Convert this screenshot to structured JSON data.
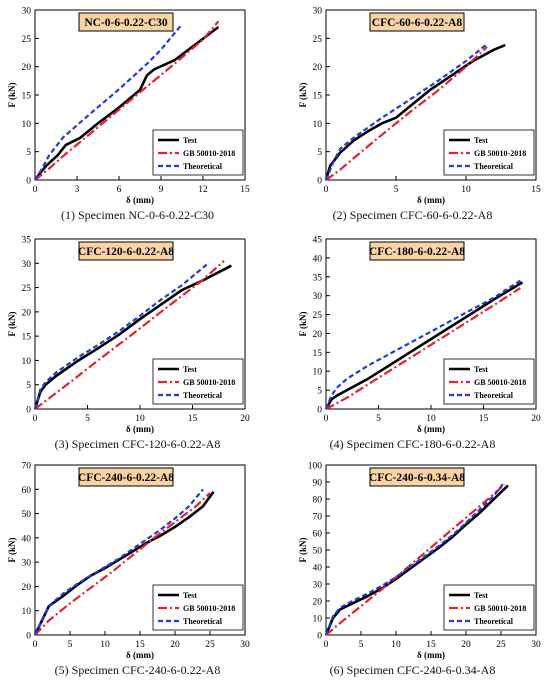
{
  "chart_data": [
    {
      "type": "line",
      "title": "NC-0-6-0.22-C30",
      "caption": "(1) Specimen NC-0-6-0.22-C30",
      "xlabel": "δ (mm)",
      "ylabel": "F (kN)",
      "xlim": [
        0,
        15
      ],
      "ylim": [
        0,
        30
      ],
      "xticks": [
        0,
        3,
        6,
        9,
        12,
        15
      ],
      "yticks": [
        0,
        5,
        10,
        15,
        20,
        25,
        30
      ],
      "legend": "bottom-right",
      "grid": false,
      "series": [
        {
          "name": "Test",
          "color": "#000000",
          "x": [
            0,
            0.3,
            0.8,
            1.6,
            2.2,
            3.2,
            4.5,
            6.0,
            7.5,
            8.0,
            8.5,
            10.0,
            11.5,
            13.1
          ],
          "y": [
            0,
            1.0,
            2.5,
            4.3,
            6.2,
            7.4,
            10.0,
            12.8,
            15.9,
            18.5,
            19.5,
            21.2,
            24.0,
            27.0
          ]
        },
        {
          "name": "GB 50010-2018",
          "color": "#e8202a",
          "x": [
            0,
            1.0,
            2.0,
            4.0,
            6.0,
            8.0,
            10.0,
            12.0,
            13.1
          ],
          "y": [
            0,
            2.0,
            4.2,
            8.3,
            12.4,
            16.5,
            20.6,
            24.8,
            28.0
          ]
        },
        {
          "name": "Theoretical",
          "color": "#1f3be0",
          "x": [
            0,
            0.5,
            1.0,
            2.0,
            4.0,
            6.0,
            8.0,
            9.0,
            10.5
          ],
          "y": [
            0,
            2.0,
            4.3,
            7.5,
            11.8,
            16.0,
            20.5,
            23.0,
            27.5
          ]
        }
      ]
    },
    {
      "type": "line",
      "title": "CFC-60-6-0.22-A8",
      "caption": "(2) Specimen CFC-60-6-0.22-A8",
      "xlabel": "δ (mm)",
      "ylabel": "F (kN)",
      "xlim": [
        0,
        15
      ],
      "ylim": [
        0,
        30
      ],
      "xticks": [
        0,
        5,
        10,
        15
      ],
      "yticks": [
        0,
        5,
        10,
        15,
        20,
        25,
        30
      ],
      "legend": "bottom-right",
      "grid": false,
      "series": [
        {
          "name": "Test",
          "color": "#000000",
          "x": [
            0,
            0.3,
            1.0,
            2.0,
            3.0,
            4.0,
            5.0,
            6.0,
            7.5,
            9.0,
            10.5,
            12.0,
            12.8
          ],
          "y": [
            0,
            2.5,
            4.8,
            7.0,
            8.6,
            10.0,
            11.0,
            13.0,
            16.0,
            18.5,
            21.0,
            23.0,
            23.8
          ]
        },
        {
          "name": "GB 50010-2018",
          "color": "#e8202a",
          "x": [
            0,
            1.0,
            2.0,
            4.0,
            6.0,
            8.0,
            10.0,
            11.5
          ],
          "y": [
            0,
            1.8,
            3.9,
            8.0,
            12.0,
            15.8,
            20.0,
            23.5
          ]
        },
        {
          "name": "Theoretical",
          "color": "#1f3be0",
          "x": [
            0,
            0.5,
            1.0,
            2.0,
            4.0,
            6.0,
            8.0,
            10.0,
            11.5
          ],
          "y": [
            0,
            3.0,
            5.5,
            7.5,
            11.0,
            14.2,
            17.5,
            21.0,
            24.0
          ]
        }
      ]
    },
    {
      "type": "line",
      "title": "CFC-120-6-0.22-A8",
      "caption": "(3) Specimen CFC-120-6-0.22-A8",
      "xlabel": "δ (mm)",
      "ylabel": "F (kN)",
      "xlim": [
        0,
        20
      ],
      "ylim": [
        0,
        35
      ],
      "xticks": [
        0,
        5,
        10,
        15,
        20
      ],
      "yticks": [
        0,
        5,
        10,
        15,
        20,
        25,
        30,
        35
      ],
      "legend": "bottom-right",
      "grid": false,
      "series": [
        {
          "name": "Test",
          "color": "#000000",
          "x": [
            0,
            0.5,
            1.0,
            2.0,
            4.0,
            6.0,
            8.0,
            10.0,
            12.0,
            14.0,
            16.0,
            18.7
          ],
          "y": [
            0,
            3.5,
            5.0,
            6.8,
            9.8,
            12.5,
            15.3,
            18.5,
            21.5,
            24.5,
            26.5,
            29.5
          ]
        },
        {
          "name": "GB 50010-2018",
          "color": "#e8202a",
          "x": [
            0,
            2.0,
            4.0,
            6.0,
            8.0,
            10.0,
            12.0,
            14.0,
            16.0,
            18.0
          ],
          "y": [
            0,
            3.3,
            6.6,
            10.0,
            13.3,
            16.6,
            20.0,
            23.3,
            26.6,
            30.5
          ]
        },
        {
          "name": "Theoretical",
          "color": "#1f3be0",
          "x": [
            0,
            0.5,
            1.0,
            2.0,
            4.0,
            6.0,
            8.0,
            10.0,
            12.0,
            14.0,
            16.5
          ],
          "y": [
            0,
            4.0,
            5.5,
            7.5,
            10.5,
            13.2,
            16.0,
            19.2,
            22.5,
            25.5,
            30.0
          ]
        }
      ]
    },
    {
      "type": "line",
      "title": "CFC-180-6-0.22-A8",
      "caption": "(4) Specimen CFC-180-6-0.22-A8",
      "xlabel": "δ (mm)",
      "ylabel": "F (kN)",
      "xlim": [
        0,
        20
      ],
      "ylim": [
        0,
        45
      ],
      "xticks": [
        0,
        5,
        10,
        15,
        20
      ],
      "yticks": [
        0,
        5,
        10,
        15,
        20,
        25,
        30,
        35,
        40,
        45
      ],
      "legend": "bottom-right",
      "grid": false,
      "series": [
        {
          "name": "Test",
          "color": "#000000",
          "x": [
            0,
            0.5,
            1.0,
            2.0,
            4.0,
            6.0,
            8.0,
            10.0,
            12.0,
            14.0,
            16.0,
            18.7
          ],
          "y": [
            0,
            2.5,
            3.5,
            5.0,
            8.0,
            11.5,
            15.0,
            18.5,
            22.0,
            25.5,
            29.0,
            33.5
          ]
        },
        {
          "name": "GB 50010-2018",
          "color": "#e8202a",
          "x": [
            0,
            2.0,
            4.0,
            6.0,
            8.0,
            10.0,
            12.0,
            14.0,
            16.0,
            18.5
          ],
          "y": [
            0,
            3.0,
            6.5,
            10.0,
            13.5,
            17.0,
            20.5,
            24.0,
            27.5,
            32.0
          ]
        },
        {
          "name": "Theoretical",
          "color": "#1f3be0",
          "x": [
            0,
            0.5,
            1.0,
            2.0,
            4.0,
            6.0,
            8.0,
            10.0,
            12.0,
            14.0,
            16.0,
            18.5
          ],
          "y": [
            0,
            3.5,
            5.5,
            8.0,
            11.5,
            14.5,
            17.5,
            20.5,
            23.5,
            26.5,
            29.5,
            34.0
          ]
        }
      ]
    },
    {
      "type": "line",
      "title": "CFC-240-6-0.22-A8",
      "caption": "(5) Specimen CFC-240-6-0.22-A8",
      "xlabel": "δ (mm)",
      "ylabel": "F (kN)",
      "xlim": [
        0,
        30
      ],
      "ylim": [
        0,
        70
      ],
      "xticks": [
        0,
        5,
        10,
        15,
        20,
        25,
        30
      ],
      "yticks": [
        0,
        10,
        20,
        30,
        40,
        50,
        60,
        70
      ],
      "legend": "bottom-right",
      "grid": false,
      "series": [
        {
          "name": "Test",
          "color": "#000000",
          "x": [
            0,
            0.5,
            1.0,
            2.0,
            4.0,
            6.0,
            8.0,
            10.0,
            12.0,
            14.0,
            16.0,
            18.0,
            20.0,
            22.0,
            24.0,
            25.5
          ],
          "y": [
            0,
            3.0,
            6.0,
            12.0,
            16.0,
            20.5,
            24.5,
            27.5,
            31.0,
            34.5,
            38.0,
            41.0,
            44.5,
            48.5,
            53.0,
            59.0
          ]
        },
        {
          "name": "GB 50010-2018",
          "color": "#e8202a",
          "x": [
            0,
            2.0,
            5.0,
            8.0,
            11.0,
            14.0,
            17.0,
            20.0,
            23.0,
            25.0
          ],
          "y": [
            0,
            6.0,
            13.0,
            19.5,
            26.0,
            33.0,
            40.0,
            46.5,
            53.0,
            58.5
          ]
        },
        {
          "name": "Theoretical",
          "color": "#1f3be0",
          "x": [
            0,
            0.5,
            1.0,
            2.0,
            4.0,
            6.0,
            8.0,
            10.0,
            12.0,
            14.0,
            16.0,
            18.0,
            20.0,
            22.0,
            24.0
          ],
          "y": [
            0,
            3.0,
            6.0,
            12.0,
            17.0,
            21.0,
            24.5,
            28.0,
            31.5,
            35.5,
            39.5,
            43.5,
            48.0,
            53.0,
            60.0
          ]
        }
      ]
    },
    {
      "type": "line",
      "title": "CFC-240-6-0.34-A8",
      "caption": "(6) Specimen CFC-240-6-0.34-A8",
      "xlabel": "δ (mm)",
      "ylabel": "F (kN)",
      "xlim": [
        0,
        30
      ],
      "ylim": [
        0,
        100
      ],
      "xticks": [
        0,
        5,
        10,
        15,
        20,
        25,
        30
      ],
      "yticks": [
        0,
        10,
        20,
        30,
        40,
        50,
        60,
        70,
        80,
        90,
        100
      ],
      "legend": "bottom-right",
      "grid": false,
      "series": [
        {
          "name": "Test",
          "color": "#000000",
          "x": [
            0,
            0.5,
            1.0,
            2.0,
            4.0,
            6.0,
            8.0,
            10.0,
            12.0,
            14.0,
            16.0,
            18.0,
            20.0,
            22.0,
            24.0,
            26.0
          ],
          "y": [
            0,
            5.0,
            10.0,
            15.0,
            19.0,
            23.0,
            27.5,
            33.0,
            39.0,
            45.0,
            51.0,
            57.5,
            65.0,
            72.0,
            80.0,
            88.0
          ]
        },
        {
          "name": "GB 50010-2018",
          "color": "#e8202a",
          "x": [
            0,
            2.0,
            5.0,
            8.0,
            11.0,
            14.0,
            17.0,
            20.0,
            23.0,
            25.5
          ],
          "y": [
            0,
            7.0,
            17.0,
            27.0,
            37.5,
            48.0,
            58.5,
            69.0,
            79.5,
            88.5
          ]
        },
        {
          "name": "Theoretical",
          "color": "#1f3be0",
          "x": [
            0,
            0.5,
            1.0,
            2.0,
            4.0,
            6.0,
            8.0,
            10.0,
            12.0,
            14.0,
            16.0,
            18.0,
            20.0,
            22.0,
            24.0,
            25.5
          ],
          "y": [
            0,
            5.5,
            11.0,
            16.0,
            20.5,
            24.5,
            29.0,
            34.0,
            40.0,
            46.0,
            52.0,
            58.5,
            66.0,
            74.0,
            82.0,
            90.0
          ]
        }
      ]
    }
  ]
}
